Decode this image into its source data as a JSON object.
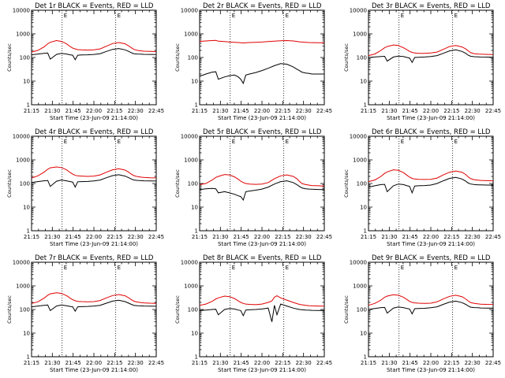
{
  "chart_data": [
    {
      "type": "line",
      "title": "Det 1r BLACK = Events, RED = LLD",
      "ylabel": "Counts/sec",
      "xlabel": "Start Time (23-Jun-09 21:14:00)",
      "yscale": "log",
      "ylim": [
        1,
        10000
      ],
      "xlim": [
        0,
        100
      ],
      "x_tick_labels": [
        "21:15",
        "21:30",
        "21:45",
        "22:00",
        "22:15",
        "22:30",
        "22:45"
      ],
      "y_tick_labels": [
        "1",
        "10",
        "100",
        "1000",
        "10000"
      ],
      "markers": [
        24.5,
        67.5
      ],
      "marker_label": "E",
      "x": [
        0,
        5,
        10,
        13,
        15,
        20,
        24,
        28,
        31,
        33,
        35,
        37,
        40,
        45,
        50,
        55,
        60,
        65,
        70,
        75,
        78,
        80,
        82,
        85,
        88,
        90,
        95,
        100
      ],
      "series": [
        {
          "name": "LLD",
          "color": "#e00000",
          "values": [
            170,
            200,
            280,
            380,
            440,
            520,
            480,
            380,
            290,
            250,
            230,
            215,
            210,
            205,
            210,
            230,
            300,
            390,
            430,
            380,
            310,
            260,
            220,
            200,
            190,
            185,
            180,
            178
          ]
        },
        {
          "name": "Events",
          "color": "#000000",
          "values": [
            130,
            140,
            150,
            155,
            85,
            135,
            150,
            140,
            130,
            125,
            80,
            125,
            128,
            130,
            135,
            145,
            180,
            220,
            240,
            210,
            180,
            160,
            145,
            140,
            138,
            136,
            135,
            134
          ]
        }
      ]
    },
    {
      "type": "line",
      "title": "Det 2r BLACK = Events, RED = LLD",
      "ylabel": "Counts/sec",
      "xlabel": "Start Time (23-Jun-09 21:14:00)",
      "yscale": "log",
      "ylim": [
        1,
        10000
      ],
      "xlim": [
        0,
        100
      ],
      "x_tick_labels": [
        "21:15",
        "21:30",
        "21:45",
        "22:00",
        "22:15",
        "22:30",
        "22:45"
      ],
      "y_tick_labels": [
        "1",
        "10",
        "100",
        "1000",
        "10000"
      ],
      "markers": [
        24.5,
        67.5
      ],
      "marker_label": "E",
      "x": [
        0,
        5,
        10,
        13,
        15,
        20,
        24,
        28,
        31,
        33,
        35,
        37,
        40,
        45,
        50,
        55,
        60,
        65,
        70,
        75,
        78,
        80,
        82,
        85,
        88,
        90,
        95,
        100
      ],
      "series": [
        {
          "name": "LLD",
          "color": "#e00000",
          "values": [
            480,
            500,
            520,
            530,
            490,
            470,
            450,
            440,
            430,
            420,
            410,
            420,
            430,
            440,
            450,
            470,
            490,
            510,
            520,
            500,
            480,
            460,
            450,
            440,
            430,
            425,
            420,
            418
          ]
        },
        {
          "name": "Events",
          "color": "#000000",
          "values": [
            16,
            20,
            24,
            25,
            12,
            15,
            17,
            18,
            15,
            12,
            8,
            18,
            20,
            23,
            28,
            35,
            45,
            55,
            52,
            40,
            32,
            28,
            24,
            22,
            21,
            20,
            20,
            20
          ]
        }
      ]
    },
    {
      "type": "line",
      "title": "Det 3r BLACK = Events, RED = LLD",
      "ylabel": "Counts/sec",
      "xlabel": "Start Time (23-Jun-09 21:14:00)",
      "yscale": "log",
      "ylim": [
        1,
        10000
      ],
      "xlim": [
        0,
        100
      ],
      "x_tick_labels": [
        "21:15",
        "21:30",
        "21:45",
        "22:00",
        "22:15",
        "22:30",
        "22:45"
      ],
      "y_tick_labels": [
        "1",
        "10",
        "100",
        "1000",
        "10000"
      ],
      "markers": [
        24.5,
        67.5
      ],
      "marker_label": "E",
      "x": [
        0,
        5,
        10,
        13,
        15,
        20,
        24,
        28,
        31,
        33,
        35,
        37,
        40,
        45,
        50,
        55,
        60,
        65,
        70,
        75,
        78,
        80,
        82,
        85,
        88,
        90,
        95,
        100
      ],
      "series": [
        {
          "name": "LLD",
          "color": "#e00000",
          "values": [
            120,
            140,
            200,
            260,
            290,
            340,
            320,
            260,
            210,
            180,
            165,
            155,
            150,
            150,
            155,
            170,
            220,
            290,
            320,
            280,
            230,
            190,
            160,
            145,
            140,
            138,
            135,
            133
          ]
        },
        {
          "name": "Events",
          "color": "#000000",
          "values": [
            100,
            105,
            110,
            112,
            70,
            105,
            115,
            110,
            100,
            95,
            62,
            100,
            102,
            105,
            110,
            120,
            150,
            190,
            210,
            180,
            150,
            125,
            112,
            108,
            106,
            105,
            104,
            103
          ]
        }
      ]
    },
    {
      "type": "line",
      "title": "Det 4r BLACK = Events, RED = LLD",
      "ylabel": "Counts/sec",
      "xlabel": "Start Time (23-Jun-09 21:14:00)",
      "yscale": "log",
      "ylim": [
        1,
        10000
      ],
      "xlim": [
        0,
        100
      ],
      "x_tick_labels": [
        "21:15",
        "21:30",
        "21:45",
        "22:00",
        "22:15",
        "22:30",
        "22:45"
      ],
      "y_tick_labels": [
        "1",
        "10",
        "100",
        "1000",
        "10000"
      ],
      "markers": [
        24.5,
        67.5
      ],
      "marker_label": "E",
      "x": [
        0,
        5,
        10,
        13,
        15,
        20,
        24,
        28,
        31,
        33,
        35,
        37,
        40,
        45,
        50,
        55,
        60,
        65,
        70,
        75,
        78,
        80,
        82,
        85,
        88,
        90,
        95,
        100
      ],
      "series": [
        {
          "name": "LLD",
          "color": "#e00000",
          "values": [
            170,
            210,
            300,
            400,
            460,
            500,
            470,
            380,
            290,
            250,
            220,
            210,
            205,
            200,
            205,
            230,
            300,
            380,
            420,
            370,
            300,
            250,
            215,
            195,
            185,
            180,
            175,
            172
          ]
        },
        {
          "name": "Events",
          "color": "#000000",
          "values": [
            110,
            120,
            130,
            135,
            75,
            125,
            140,
            130,
            120,
            115,
            70,
            118,
            120,
            122,
            128,
            140,
            175,
            215,
            235,
            205,
            175,
            155,
            140,
            135,
            132,
            130,
            128,
            127
          ]
        }
      ]
    },
    {
      "type": "line",
      "title": "Det 5r BLACK = Events, RED = LLD",
      "ylabel": "Counts/sec",
      "xlabel": "Start Time (23-Jun-09 21:14:00)",
      "yscale": "log",
      "ylim": [
        1,
        10000
      ],
      "xlim": [
        0,
        100
      ],
      "x_tick_labels": [
        "21:15",
        "21:30",
        "21:45",
        "22:00",
        "22:15",
        "22:30",
        "22:45"
      ],
      "y_tick_labels": [
        "1",
        "10",
        "100",
        "1000",
        "10000"
      ],
      "markers": [
        24.5,
        67.5
      ],
      "marker_label": "E",
      "x": [
        0,
        5,
        10,
        13,
        15,
        20,
        24,
        28,
        31,
        33,
        35,
        37,
        40,
        45,
        50,
        55,
        60,
        65,
        70,
        75,
        78,
        80,
        82,
        85,
        88,
        90,
        95,
        100
      ],
      "series": [
        {
          "name": "LLD",
          "color": "#e00000",
          "values": [
            90,
            100,
            140,
            180,
            200,
            240,
            230,
            190,
            150,
            125,
            110,
            100,
            95,
            92,
            95,
            110,
            160,
            210,
            230,
            200,
            160,
            125,
            100,
            90,
            85,
            82,
            80,
            78
          ]
        },
        {
          "name": "Events",
          "color": "#000000",
          "values": [
            55,
            60,
            62,
            60,
            40,
            45,
            40,
            35,
            30,
            28,
            20,
            45,
            48,
            52,
            58,
            70,
            95,
            120,
            130,
            110,
            90,
            75,
            65,
            60,
            58,
            57,
            56,
            55
          ]
        }
      ]
    },
    {
      "type": "line",
      "title": "Det 6r BLACK = Events, RED = LLD",
      "ylabel": "Counts/sec",
      "xlabel": "Start Time (23-Jun-09 21:14:00)",
      "yscale": "log",
      "ylim": [
        1,
        10000
      ],
      "xlim": [
        0,
        100
      ],
      "x_tick_labels": [
        "21:15",
        "21:30",
        "21:45",
        "22:00",
        "22:15",
        "22:30",
        "22:45"
      ],
      "y_tick_labels": [
        "1",
        "10",
        "100",
        "1000",
        "10000"
      ],
      "markers": [
        24.5,
        67.5
      ],
      "marker_label": "E",
      "x": [
        0,
        5,
        10,
        13,
        15,
        20,
        24,
        28,
        31,
        33,
        35,
        37,
        40,
        45,
        50,
        55,
        60,
        65,
        70,
        75,
        78,
        80,
        82,
        85,
        88,
        90,
        95,
        100
      ],
      "series": [
        {
          "name": "LLD",
          "color": "#e00000",
          "values": [
            120,
            140,
            200,
            270,
            310,
            380,
            360,
            290,
            220,
            185,
            165,
            155,
            150,
            148,
            150,
            170,
            230,
            300,
            340,
            300,
            240,
            190,
            160,
            145,
            138,
            135,
            132,
            130
          ]
        },
        {
          "name": "Events",
          "color": "#000000",
          "values": [
            70,
            80,
            90,
            92,
            45,
            80,
            95,
            90,
            80,
            75,
            40,
            78,
            80,
            82,
            86,
            100,
            130,
            165,
            180,
            155,
            125,
            105,
            95,
            90,
            88,
            87,
            86,
            85
          ]
        }
      ]
    },
    {
      "type": "line",
      "title": "Det 7r BLACK = Events, RED = LLD",
      "ylabel": "Counts/sec",
      "xlabel": "Start Time (23-Jun-09 21:14:00)",
      "yscale": "log",
      "ylim": [
        1,
        10000
      ],
      "xlim": [
        0,
        100
      ],
      "x_tick_labels": [
        "21:15",
        "21:30",
        "21:45",
        "22:00",
        "22:15",
        "22:30",
        "22:45"
      ],
      "y_tick_labels": [
        "1",
        "10",
        "100",
        "1000",
        "10000"
      ],
      "markers": [
        24.5,
        67.5
      ],
      "marker_label": "E",
      "x": [
        0,
        5,
        10,
        13,
        15,
        20,
        24,
        28,
        31,
        33,
        35,
        37,
        40,
        45,
        50,
        55,
        60,
        65,
        70,
        75,
        78,
        80,
        82,
        85,
        88,
        90,
        95,
        100
      ],
      "series": [
        {
          "name": "LLD",
          "color": "#e00000",
          "values": [
            180,
            210,
            300,
            400,
            460,
            510,
            480,
            390,
            300,
            260,
            235,
            220,
            215,
            210,
            215,
            240,
            310,
            390,
            430,
            380,
            310,
            260,
            225,
            205,
            195,
            190,
            185,
            182
          ]
        },
        {
          "name": "Events",
          "color": "#000000",
          "values": [
            130,
            140,
            150,
            155,
            90,
            140,
            155,
            145,
            135,
            130,
            85,
            130,
            132,
            135,
            140,
            150,
            185,
            225,
            245,
            215,
            185,
            165,
            150,
            145,
            142,
            140,
            138,
            137
          ]
        }
      ]
    },
    {
      "type": "line",
      "title": "Det 8r BLACK = Events, RED = LLD",
      "ylabel": "Counts/sec",
      "xlabel": "Start Time (23-Jun-09 21:14:00)",
      "yscale": "log",
      "ylim": [
        1,
        10000
      ],
      "xlim": [
        0,
        100
      ],
      "x_tick_labels": [
        "21:15",
        "21:30",
        "21:45",
        "22:00",
        "22:15",
        "22:30",
        "22:45"
      ],
      "y_tick_labels": [
        "1",
        "10",
        "100",
        "1000",
        "10000"
      ],
      "markers": [
        24.5,
        67.5
      ],
      "marker_label": "E",
      "x": [
        0,
        5,
        10,
        13,
        15,
        20,
        24,
        28,
        31,
        33,
        35,
        37,
        40,
        45,
        50,
        55,
        58,
        60,
        62,
        65,
        70,
        75,
        80,
        85,
        88,
        90,
        95,
        100
      ],
      "series": [
        {
          "name": "LLD",
          "color": "#e00000",
          "values": [
            150,
            170,
            220,
            280,
            310,
            370,
            350,
            290,
            230,
            200,
            180,
            170,
            165,
            160,
            170,
            200,
            230,
            330,
            380,
            310,
            250,
            200,
            165,
            150,
            145,
            142,
            140,
            138
          ]
        },
        {
          "name": "Events",
          "color": "#000000",
          "values": [
            90,
            95,
            100,
            102,
            60,
            100,
            110,
            105,
            95,
            90,
            55,
            95,
            97,
            100,
            105,
            115,
            30,
            150,
            60,
            170,
            140,
            115,
            100,
            95,
            93,
            92,
            91,
            90
          ]
        }
      ]
    },
    {
      "type": "line",
      "title": "Det 9r BLACK = Events, RED = LLD",
      "ylabel": "Counts/sec",
      "xlabel": "Start Time (23-Jun-09 21:14:00)",
      "yscale": "log",
      "ylim": [
        1,
        10000
      ],
      "xlim": [
        0,
        100
      ],
      "x_tick_labels": [
        "21:15",
        "21:30",
        "21:45",
        "22:00",
        "22:15",
        "22:30",
        "22:45"
      ],
      "y_tick_labels": [
        "1",
        "10",
        "100",
        "1000",
        "10000"
      ],
      "markers": [
        24.5,
        67.5
      ],
      "marker_label": "E",
      "x": [
        0,
        5,
        10,
        13,
        15,
        20,
        24,
        28,
        31,
        33,
        35,
        37,
        40,
        45,
        50,
        55,
        60,
        65,
        70,
        75,
        78,
        80,
        82,
        85,
        88,
        90,
        95,
        100
      ],
      "series": [
        {
          "name": "LLD",
          "color": "#e00000",
          "values": [
            150,
            180,
            250,
            330,
            370,
            420,
            400,
            330,
            260,
            220,
            200,
            190,
            185,
            180,
            185,
            210,
            280,
            360,
            400,
            350,
            280,
            230,
            195,
            180,
            172,
            168,
            165,
            163
          ]
        },
        {
          "name": "Events",
          "color": "#000000",
          "values": [
            100,
            110,
            120,
            122,
            70,
            115,
            128,
            120,
            110,
            105,
            65,
            108,
            110,
            112,
            118,
            130,
            165,
            205,
            225,
            195,
            165,
            140,
            125,
            120,
            118,
            116,
            115,
            114
          ]
        }
      ]
    }
  ]
}
